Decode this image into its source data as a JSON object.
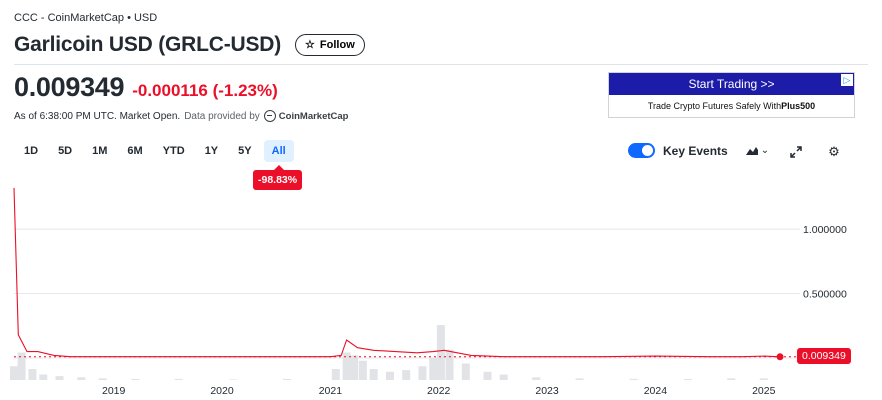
{
  "header": {
    "breadcrumb": "CCC - CoinMarketCap • USD",
    "title": "Garlicoin USD (GRLC-USD)",
    "follow_label": "Follow"
  },
  "quote": {
    "price": "0.009349",
    "change": "-0.000116 (-1.23%)",
    "as_of": "As of 6:38:00 PM UTC. Market Open.",
    "provided_by": "Data provided by",
    "provider": "CoinMarketCap"
  },
  "ad": {
    "headline": "Start Trading >>",
    "tagline": "Trade Crypto Futures Safely With ",
    "tagline_brand": "Plus500",
    "choice_icon": "adchoices-icon"
  },
  "ranges": {
    "items": [
      "1D",
      "5D",
      "1M",
      "6M",
      "YTD",
      "1Y",
      "5Y",
      "All"
    ],
    "selected": "All",
    "performance": "-98.83%"
  },
  "controls": {
    "key_events_label": "Key Events",
    "key_events_on": true,
    "chart_type_icon": "mountain-chart-icon",
    "expand_icon": "expand-icon",
    "settings_icon": "gear-icon"
  },
  "colors": {
    "accent": "#0f69ff",
    "negative": "#eb0f29",
    "ad_banner": "#1d1ca8",
    "volume": "#e2e3e6"
  },
  "chart_data": {
    "type": "line",
    "x_labels": [
      "2019",
      "2020",
      "2021",
      "2022",
      "2023",
      "2024",
      "2025"
    ],
    "y_ticks": [
      "1.000000",
      "0.500000"
    ],
    "ylim": [
      0,
      1.35
    ],
    "current_price_label": "0.009349",
    "current_price": 0.009349,
    "series": [
      {
        "x": [
          2018.08,
          2018.12,
          2018.2,
          2018.3,
          2018.45,
          2018.6,
          2018.8,
          2019.0,
          2019.5,
          2020.0,
          2020.5,
          2021.0,
          2021.1,
          2021.15,
          2021.25,
          2021.4,
          2021.6,
          2021.8,
          2021.95,
          2022.05,
          2022.3,
          2022.6,
          2023.0,
          2023.5,
          2024.0,
          2024.5,
          2024.8,
          2025.0,
          2025.15
        ],
        "y": [
          1.32,
          0.18,
          0.05,
          0.05,
          0.02,
          0.01,
          0.01,
          0.01,
          0.01,
          0.01,
          0.01,
          0.01,
          0.02,
          0.14,
          0.08,
          0.06,
          0.05,
          0.04,
          0.05,
          0.06,
          0.02,
          0.01,
          0.01,
          0.01,
          0.015,
          0.01,
          0.01,
          0.015,
          0.009349
        ]
      }
    ],
    "volume": {
      "x": [
        2018.08,
        2018.15,
        2018.25,
        2018.35,
        2018.5,
        2018.7,
        2018.9,
        2019.2,
        2019.6,
        2020.1,
        2020.6,
        2021.05,
        2021.15,
        2021.22,
        2021.3,
        2021.4,
        2021.55,
        2021.7,
        2021.85,
        2021.95,
        2022.02,
        2022.1,
        2022.25,
        2022.45,
        2022.6,
        2022.9,
        2023.3,
        2023.8,
        2024.3,
        2024.7,
        2025.0
      ],
      "values": [
        0.25,
        0.5,
        0.2,
        0.1,
        0.07,
        0.05,
        0.03,
        0.02,
        0.02,
        0.01,
        0.02,
        0.2,
        0.5,
        0.45,
        0.35,
        0.2,
        0.15,
        0.18,
        0.25,
        0.4,
        1.0,
        0.55,
        0.3,
        0.15,
        0.1,
        0.05,
        0.03,
        0.02,
        0.02,
        0.03,
        0.03
      ]
    }
  }
}
